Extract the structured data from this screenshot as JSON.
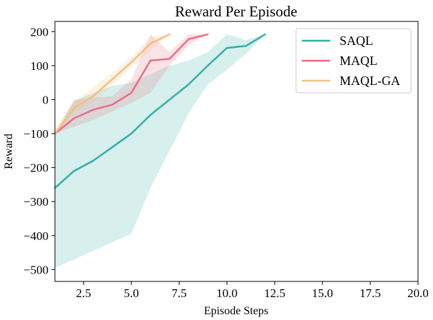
{
  "chart_data": {
    "type": "line",
    "title": "Reward Per Episode",
    "xlabel": "Episode Steps",
    "ylabel": "Reward",
    "xlim": [
      1,
      20
    ],
    "ylim": [
      -535,
      230
    ],
    "x_ticks": [
      2.5,
      5.0,
      7.5,
      10.0,
      12.5,
      15.0,
      17.5,
      20.0
    ],
    "x_tick_labels": [
      "2.5",
      "5.0",
      "7.5",
      "10.0",
      "12.5",
      "15.0",
      "17.5",
      "20.0"
    ],
    "y_ticks": [
      200,
      100,
      0,
      -100,
      -200,
      -300,
      -400,
      -500
    ],
    "y_tick_labels": [
      "200",
      "100",
      "0",
      "−100",
      "−200",
      "−300",
      "−400",
      "−500"
    ],
    "grid": false,
    "legend_position": "top-right",
    "series": [
      {
        "name": "SAQL",
        "color": "#36aea6",
        "x": [
          1,
          2,
          3,
          4,
          5,
          6,
          7,
          8,
          9,
          10,
          11,
          12
        ],
        "y": [
          -260,
          -210,
          -180,
          -140,
          -100,
          -45,
          0,
          45,
          100,
          152,
          158,
          192
        ],
        "band_upper": [
          -100,
          -5,
          20,
          40,
          50,
          75,
          100,
          115,
          140,
          192,
          175,
          192
        ],
        "band_lower": [
          -495,
          -470,
          -445,
          -420,
          -395,
          -260,
          -150,
          -40,
          45,
          88,
          135,
          192
        ]
      },
      {
        "name": "MAQL",
        "color": "#ea6d86",
        "x": [
          1,
          2,
          3,
          4,
          5,
          6,
          7,
          8,
          9
        ],
        "y": [
          -100,
          -55,
          -30,
          -15,
          20,
          115,
          120,
          178,
          192
        ],
        "band_upper": [
          -100,
          0,
          5,
          10,
          60,
          192,
          140,
          192,
          192
        ],
        "band_lower": [
          -100,
          -80,
          -60,
          -35,
          -10,
          20,
          100,
          160,
          192
        ]
      },
      {
        "name": "MAQL-GA",
        "color": "#f2bf80",
        "x": [
          1,
          2,
          3,
          4,
          5,
          6,
          7
        ],
        "y": [
          -100,
          -25,
          10,
          60,
          110,
          165,
          192
        ],
        "band_upper": [
          -90,
          -5,
          35,
          80,
          125,
          185,
          192
        ],
        "band_lower": [
          -100,
          -40,
          -10,
          40,
          95,
          145,
          192
        ]
      }
    ]
  }
}
